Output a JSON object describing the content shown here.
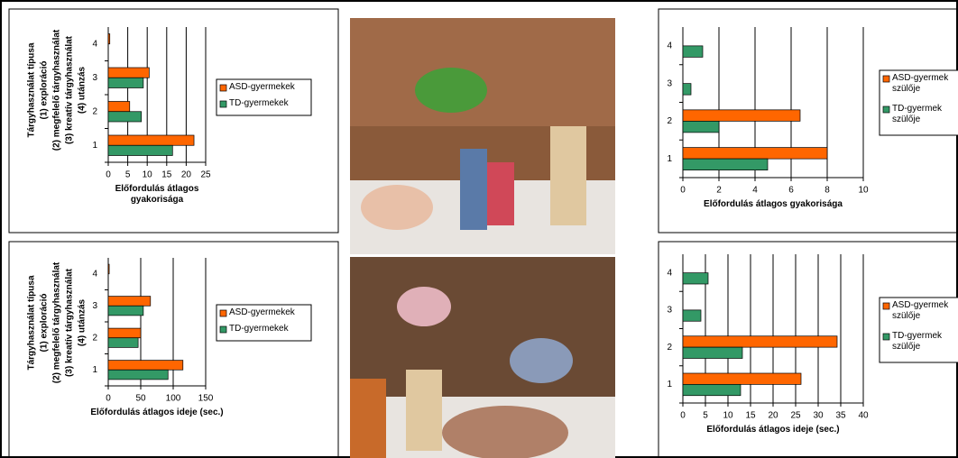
{
  "chart_data": [
    {
      "type": "bar",
      "orientation": "horizontal",
      "categories": [
        "1",
        "2",
        "3",
        "4"
      ],
      "ylabel": [
        "Tárgyhasználat típusa",
        "(1) exploráció",
        "(2) megfelelő tárgyhasználat",
        "(3) kreatív tárgyhasználat",
        "(4) utánzás"
      ],
      "xlabel": "Előfordulás átlagos gyakorisága",
      "series": [
        {
          "name": "ASD-gyermekek",
          "color": "#ff6600",
          "values": [
            22,
            5.5,
            10.5,
            0.4
          ]
        },
        {
          "name": "TD-gyermekek",
          "color": "#339966",
          "values": [
            16.5,
            8.5,
            9,
            0
          ]
        }
      ],
      "xlim": [
        0,
        25
      ],
      "xticks": [
        0,
        5,
        10,
        15,
        20,
        25
      ],
      "grid": true,
      "legend": "right"
    },
    {
      "type": "bar",
      "orientation": "horizontal",
      "categories": [
        "1",
        "2",
        "3",
        "4"
      ],
      "ylabel": [
        "Tárgyhasználat típusa",
        "(1) exploráció",
        "(2) megfelelő tárgyhasználat",
        "(3) kreatív tárgyhasználat",
        "(4) utánzás"
      ],
      "xlabel": "Előfordulás átlagos ideje (sec.)",
      "series": [
        {
          "name": "ASD-gyermekek",
          "color": "#ff6600",
          "values": [
            115,
            50,
            65,
            1.5
          ]
        },
        {
          "name": "TD-gyermekek",
          "color": "#339966",
          "values": [
            92,
            46,
            54,
            0
          ]
        }
      ],
      "xlim": [
        0,
        150
      ],
      "xticks": [
        0,
        50,
        100,
        150
      ],
      "grid": true,
      "legend": "right"
    },
    {
      "type": "bar",
      "orientation": "horizontal",
      "categories": [
        "1",
        "2",
        "3",
        "4"
      ],
      "xlabel": "Előfordulás átlagos gyakorisága",
      "series": [
        {
          "name": "ASD-gyermek szülője",
          "color": "#ff6600",
          "values": [
            8,
            6.5,
            0,
            0
          ]
        },
        {
          "name": "TD-gyermek szülője",
          "color": "#339966",
          "values": [
            4.7,
            2,
            0.45,
            1.1
          ]
        }
      ],
      "xlim": [
        0,
        10
      ],
      "xticks": [
        0,
        2,
        4,
        6,
        8,
        10
      ],
      "grid": true,
      "legend": "right"
    },
    {
      "type": "bar",
      "orientation": "horizontal",
      "categories": [
        "1",
        "2",
        "3",
        "4"
      ],
      "xlabel": "Előfordulás átlagos ideje (sec.)",
      "series": [
        {
          "name": "ASD-gyermek szülője",
          "color": "#ff6600",
          "values": [
            26.2,
            34.2,
            0,
            0
          ]
        },
        {
          "name": "TD-gyermek szülője",
          "color": "#339966",
          "values": [
            12.8,
            13.2,
            4,
            5.6
          ]
        }
      ],
      "xlim": [
        0,
        40
      ],
      "xticks": [
        0,
        5,
        10,
        15,
        20,
        25,
        30,
        35,
        40
      ],
      "grid": true,
      "legend": "right"
    }
  ]
}
